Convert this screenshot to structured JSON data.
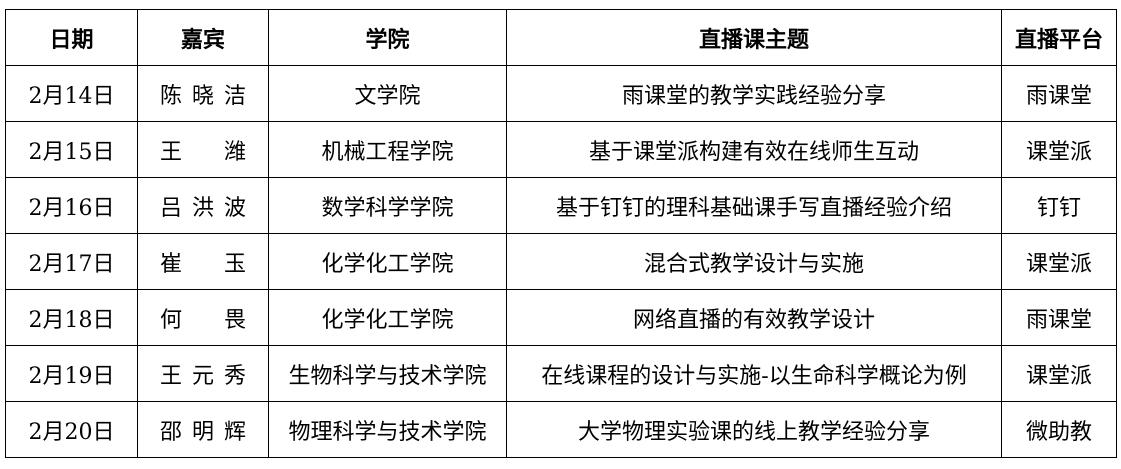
{
  "headers": [
    "日期",
    "嘉宾",
    "学院",
    "直播课主题",
    "直播平台"
  ],
  "rows": [
    {
      "date": "2月14日",
      "guest": "陈 晓 洁",
      "college": "文学院",
      "topic": "雨课堂的教学实践经验分享",
      "platform": "雨课堂"
    },
    {
      "date": "2月15日",
      "guest": "王 潍",
      "college": "机械工程学院",
      "topic": "基于课堂派构建有效在线师生互动",
      "platform": "课堂派"
    },
    {
      "date": "2月16日",
      "guest": "吕 洪 波",
      "college": "数学科学学院",
      "topic": "基于钉钉的理科基础课手写直播经验介绍",
      "platform": "钉钉"
    },
    {
      "date": "2月17日",
      "guest": "崔 玉",
      "college": "化学化工学院",
      "topic": "混合式教学设计与实施",
      "platform": "课堂派"
    },
    {
      "date": "2月18日",
      "guest": "何 畏",
      "college": "化学化工学院",
      "topic": "网络直播的有效教学设计",
      "platform": "雨课堂"
    },
    {
      "date": "2月19日",
      "guest": "王 元 秀",
      "college": "生物科学与技术学院",
      "topic": "在线课程的设计与实施-以生命科学概论为例",
      "platform": "课堂派"
    },
    {
      "date": "2月20日",
      "guest": "邵 明 辉",
      "college": "物理科学与技术学院",
      "topic": "大学物理实验课的线上教学经验分享",
      "platform": "微助教"
    }
  ]
}
